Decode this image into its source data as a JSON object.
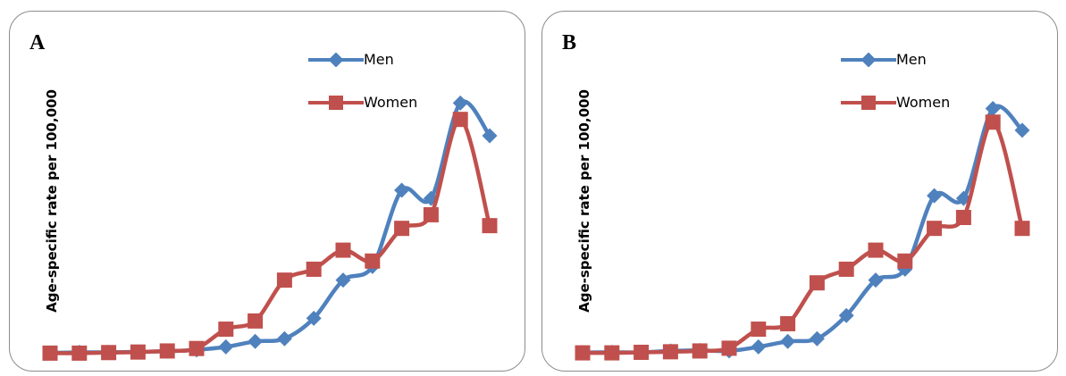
{
  "colors": {
    "men": "#4f81bd",
    "women": "#c0504d"
  },
  "legend": {
    "men": "Men",
    "women": "Women"
  },
  "chart_data": [
    {
      "type": "line",
      "panel_label": "A",
      "title": "",
      "xlabel": "",
      "ylabel": "Age-specific rate per 100,000",
      "legend_position": "top-right",
      "grid": false,
      "x": [
        1,
        2,
        3,
        4,
        5,
        6,
        7,
        8,
        9,
        10,
        11,
        12,
        13,
        14,
        15,
        16
      ],
      "ylim": [
        0,
        100
      ],
      "series": [
        {
          "name": "Men",
          "marker": "diamond",
          "values": [
            0.3,
            0.5,
            0.5,
            0.7,
            0.9,
            1.4,
            2.5,
            4.5,
            5.5,
            13.0,
            27.0,
            32.0,
            60.0,
            57.0,
            92.0,
            80.0
          ]
        },
        {
          "name": "Women",
          "marker": "square",
          "values": [
            0.2,
            0.2,
            0.4,
            0.6,
            1.0,
            1.9,
            9.0,
            12.0,
            27.0,
            31.0,
            38.0,
            34.0,
            46.0,
            51.0,
            86.0,
            47.0
          ]
        }
      ]
    },
    {
      "type": "line",
      "panel_label": "B",
      "title": "",
      "xlabel": "",
      "ylabel": "Age-specific rate per 100,000",
      "legend_position": "top-right",
      "grid": false,
      "x": [
        1,
        2,
        3,
        4,
        5,
        6,
        7,
        8,
        9,
        10,
        11,
        12,
        13,
        14,
        15,
        16
      ],
      "ylim": [
        0,
        100
      ],
      "series": [
        {
          "name": "Men",
          "marker": "diamond",
          "values": [
            0.4,
            0.5,
            0.5,
            1.0,
            1.2,
            1.0,
            2.5,
            4.5,
            5.5,
            14.0,
            27.0,
            31.0,
            58.0,
            57.0,
            90.0,
            82.0
          ]
        },
        {
          "name": "Women",
          "marker": "square",
          "values": [
            0.3,
            0.3,
            0.5,
            0.7,
            1.0,
            2.0,
            9.0,
            11.0,
            26.0,
            31.0,
            38.0,
            34.0,
            46.0,
            50.0,
            85.0,
            46.0
          ]
        }
      ]
    }
  ]
}
